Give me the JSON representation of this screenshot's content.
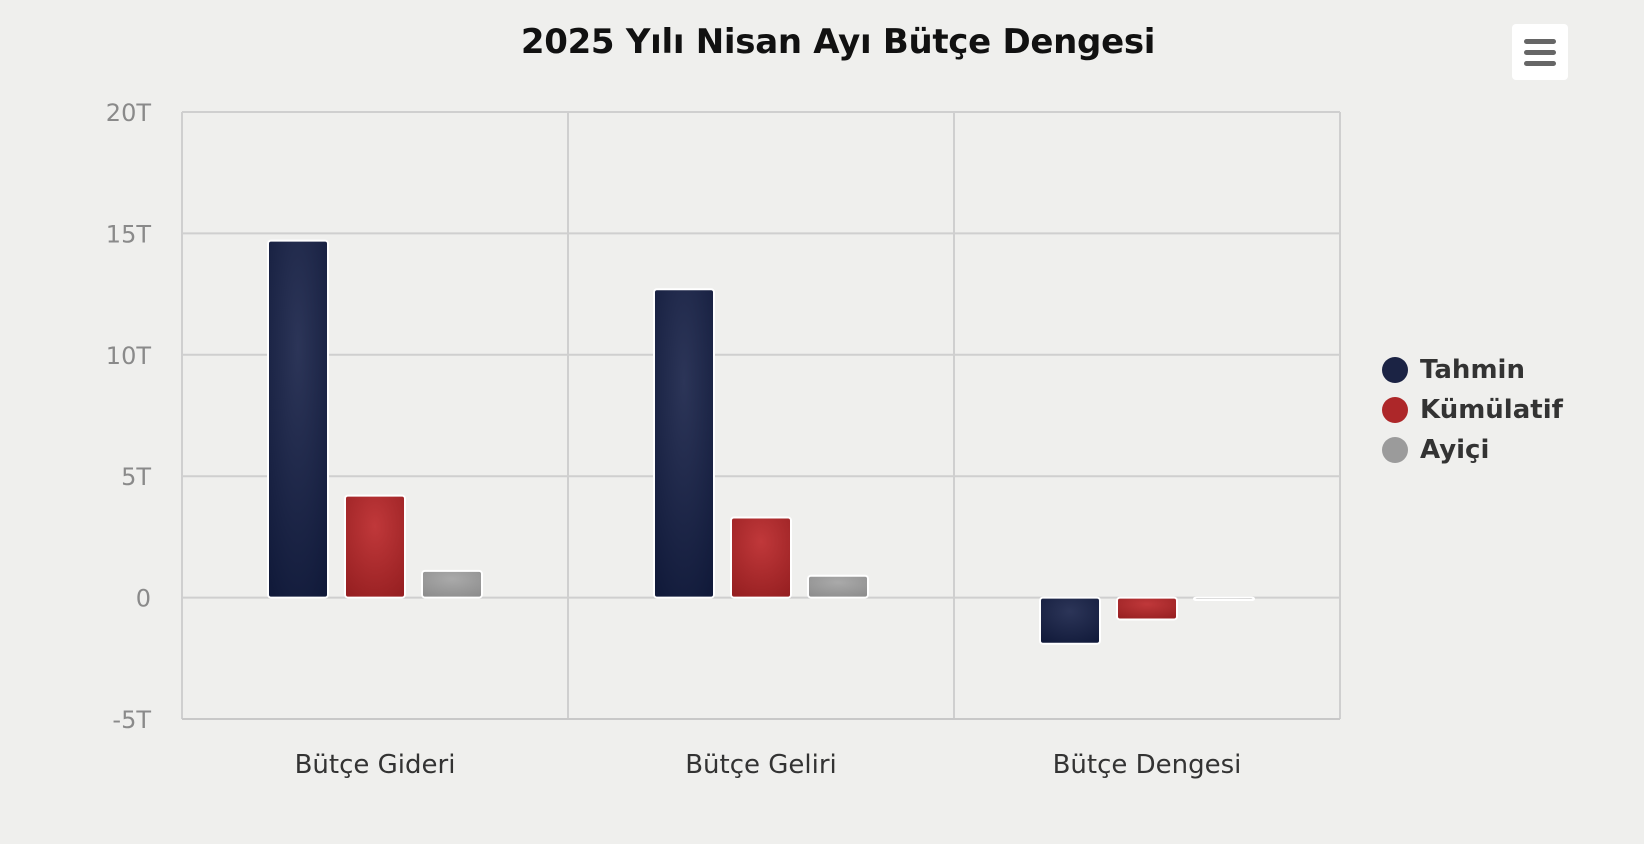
{
  "chart_data": {
    "type": "bar",
    "title": "2025 Yılı Nisan Ayı Bütçe Dengesi",
    "categories": [
      "Bütçe Gideri",
      "Bütçe Geliri",
      "Bütçe Dengesi"
    ],
    "series": [
      {
        "name": "Tahmin",
        "color": "#1b2344",
        "values": [
          14.7,
          12.7,
          -1.9
        ]
      },
      {
        "name": "Kümülatif",
        "color": "#ad2729",
        "values": [
          4.2,
          3.3,
          -0.9
        ]
      },
      {
        "name": "Ayiçi",
        "color": "#9b9b9b",
        "values": [
          1.1,
          0.9,
          -0.1
        ]
      }
    ],
    "ylim": [
      -5,
      20
    ],
    "yticks": [
      {
        "value": -5,
        "label": "-5T"
      },
      {
        "value": 0,
        "label": "0"
      },
      {
        "value": 5,
        "label": "5T"
      },
      {
        "value": 10,
        "label": "10T"
      },
      {
        "value": 15,
        "label": "15T"
      },
      {
        "value": 20,
        "label": "20T"
      }
    ],
    "grid": true,
    "legend_position": "right"
  },
  "toolbar": {
    "menu_icon": "hamburger-menu-icon"
  }
}
